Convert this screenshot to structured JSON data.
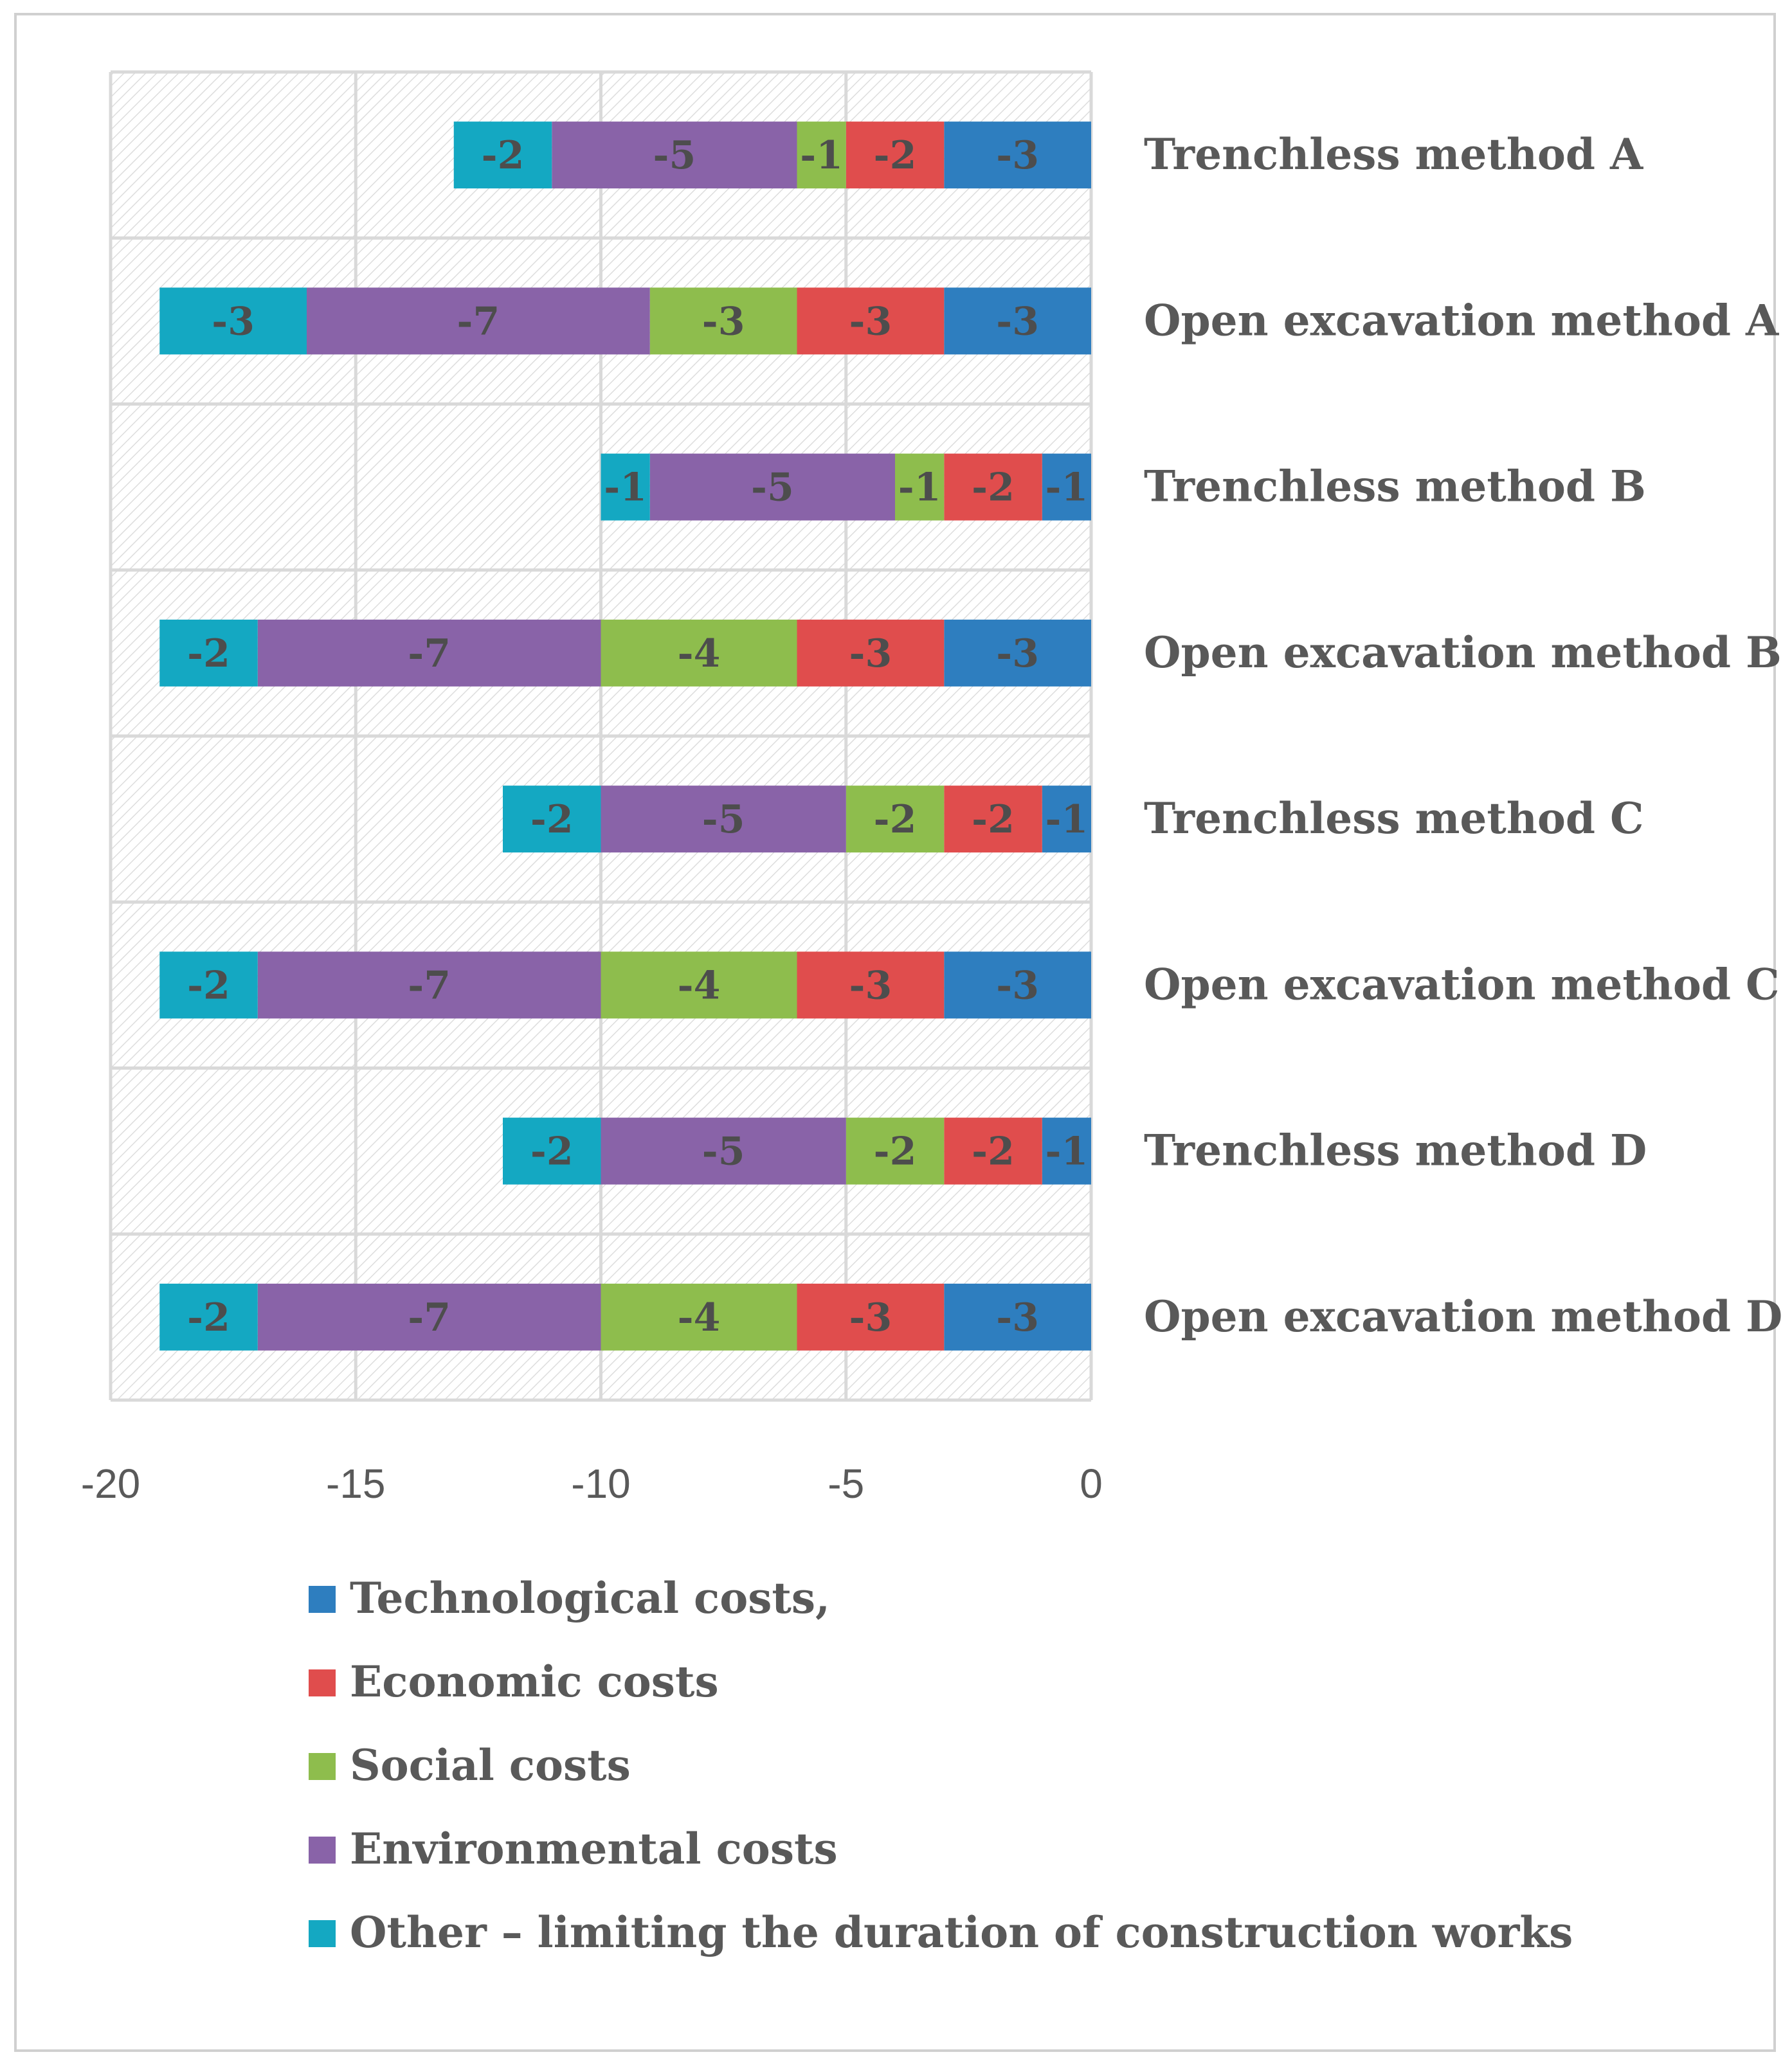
{
  "chart_data": {
    "type": "bar",
    "orientation": "horizontal",
    "stacked": true,
    "title": "",
    "xlabel": "",
    "ylabel": "",
    "xlim": [
      -20,
      0
    ],
    "x_ticks": [
      -20,
      -15,
      -10,
      -5,
      0
    ],
    "grid": true,
    "legend_position": "bottom",
    "categories": [
      "Trenchless method A",
      "Open excavation method A",
      "Trenchless method B",
      "Open excavation method B",
      "Trenchless method C",
      "Open excavation method C",
      "Trenchless method D",
      "Open excavation method D"
    ],
    "series": [
      {
        "name": "Technological costs,",
        "color": "#2e7ebf",
        "values": [
          -3,
          -3,
          -1,
          -3,
          -1,
          -3,
          -1,
          -3
        ]
      },
      {
        "name": "Economic costs",
        "color": "#e04d4d",
        "values": [
          -2,
          -3,
          -2,
          -3,
          -2,
          -3,
          -2,
          -3
        ]
      },
      {
        "name": "Social costs",
        "color": "#8ebd4d",
        "values": [
          -1,
          -3,
          -1,
          -4,
          -2,
          -4,
          -2,
          -4
        ]
      },
      {
        "name": "Environmental costs",
        "color": "#8963a8",
        "values": [
          -5,
          -7,
          -5,
          -7,
          -5,
          -7,
          -5,
          -7
        ]
      },
      {
        "name": "Other – limiting the duration of construction works",
        "color": "#14a8c2",
        "values": [
          -2,
          -3,
          -1,
          -2,
          -2,
          -2,
          -2,
          -2
        ]
      }
    ]
  }
}
